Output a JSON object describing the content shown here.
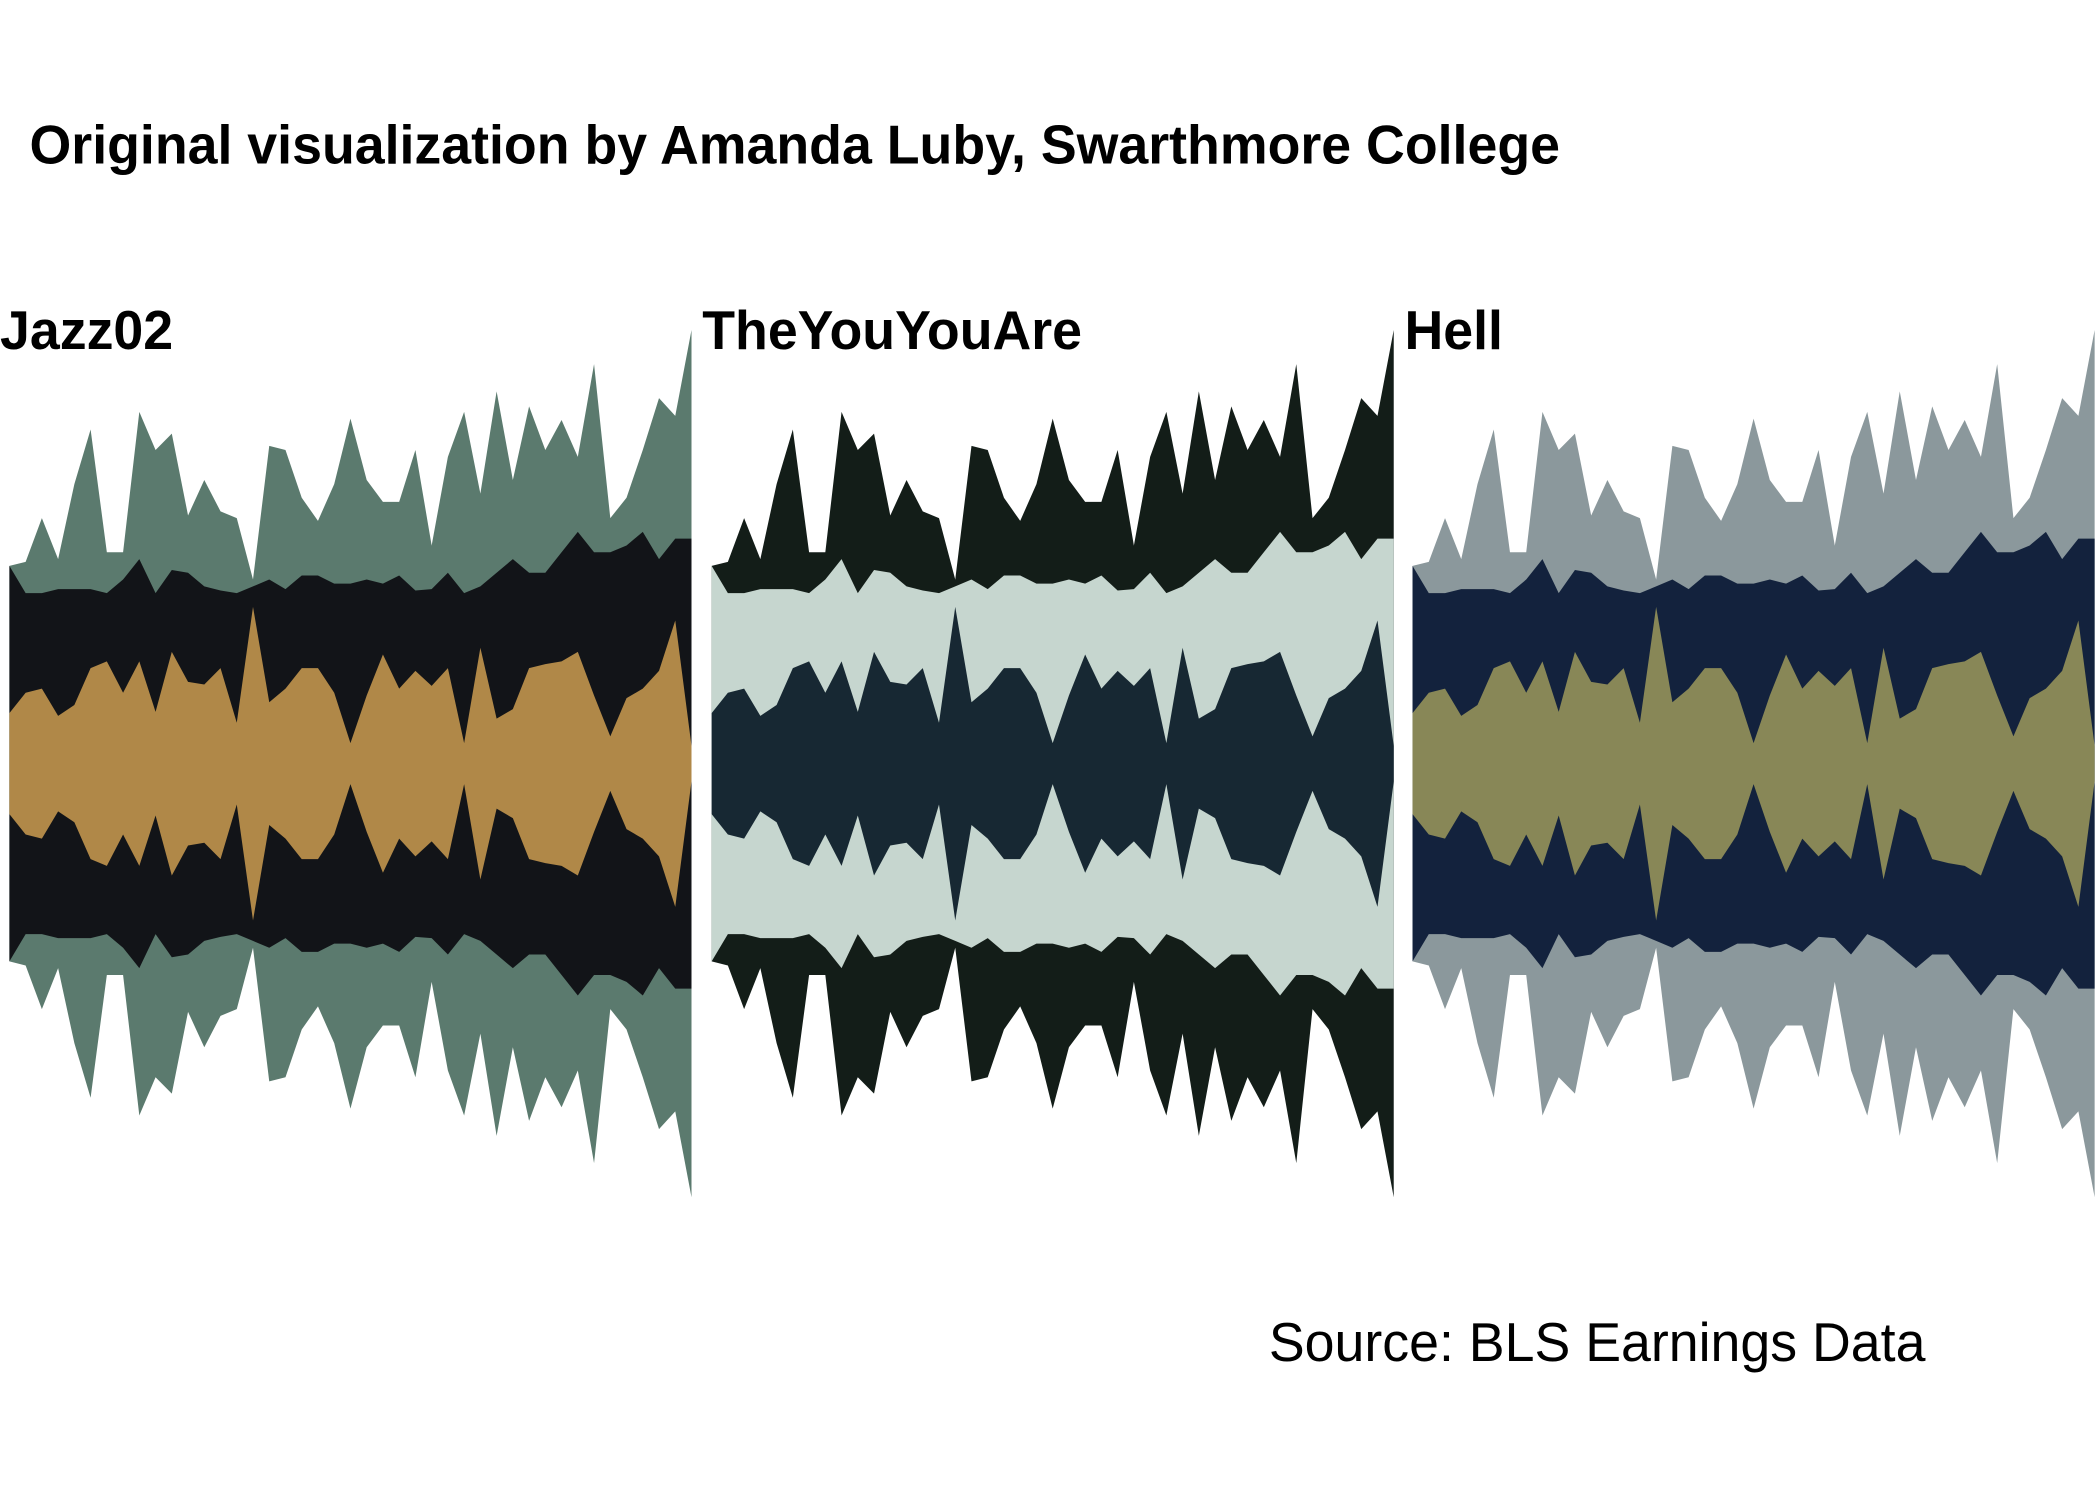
{
  "title": "Original visualization by Amanda Luby, Swarthmore College",
  "source": "Source: BLS Earnings Data",
  "chart_data": [
    {
      "type": "stream",
      "title": "Jazz02",
      "ylim": [
        -330,
        330
      ],
      "series": [
        {
          "color": "#b08848",
          "values": [
            37,
            52,
            55,
            35,
            43,
            70,
            75,
            52,
            75,
            38,
            82,
            60,
            58,
            70,
            30,
            115,
            45,
            55,
            70,
            70,
            52,
            15,
            50,
            80,
            55,
            68,
            57,
            70,
            15,
            85,
            33,
            40,
            70,
            73,
            75,
            82,
            50,
            20,
            48,
            55,
            68,
            105,
            13
          ]
        },
        {
          "color": "#121418",
          "values": [
            108,
            73,
            70,
            93,
            85,
            58,
            50,
            83,
            75,
            87,
            60,
            80,
            72,
            57,
            95,
            15,
            90,
            73,
            68,
            68,
            80,
            117,
            85,
            52,
            83,
            59,
            71,
            70,
            110,
            45,
            107,
            110,
            70,
            67,
            80,
            88,
            105,
            135,
            112,
            115,
            82,
            60,
            152
          ]
        },
        {
          "color": "#5b7a6e",
          "values": [
            0,
            23,
            55,
            22,
            77,
            117,
            30,
            20,
            108,
            105,
            100,
            42,
            78,
            58,
            55,
            5,
            98,
            102,
            57,
            40,
            73,
            121,
            73,
            60,
            54,
            103,
            32,
            85,
            133,
            68,
            133,
            58,
            122,
            90,
            97,
            55,
            138,
            25,
            35,
            60,
            118,
            90,
            153
          ]
        }
      ]
    },
    {
      "type": "stream",
      "title": "TheYouYouAre",
      "ylim": [
        -330,
        330
      ],
      "series": [
        {
          "color": "#172833",
          "values": [
            37,
            52,
            55,
            35,
            43,
            70,
            75,
            52,
            75,
            38,
            82,
            60,
            58,
            70,
            30,
            115,
            45,
            55,
            70,
            70,
            52,
            15,
            50,
            80,
            55,
            68,
            57,
            70,
            15,
            85,
            33,
            40,
            70,
            73,
            75,
            82,
            50,
            20,
            48,
            55,
            68,
            105,
            13
          ]
        },
        {
          "color": "#c6d6cf",
          "values": [
            108,
            73,
            70,
            93,
            85,
            58,
            50,
            83,
            75,
            87,
            60,
            80,
            72,
            57,
            95,
            15,
            90,
            73,
            68,
            68,
            80,
            117,
            85,
            52,
            83,
            59,
            71,
            70,
            110,
            45,
            107,
            110,
            70,
            67,
            80,
            88,
            105,
            135,
            112,
            115,
            82,
            60,
            152
          ]
        },
        {
          "color": "#131d18",
          "values": [
            0,
            23,
            55,
            22,
            77,
            117,
            30,
            20,
            108,
            105,
            100,
            42,
            78,
            58,
            55,
            5,
            98,
            102,
            57,
            40,
            73,
            121,
            73,
            60,
            54,
            103,
            32,
            85,
            133,
            68,
            133,
            58,
            122,
            90,
            97,
            55,
            138,
            25,
            35,
            60,
            118,
            90,
            153
          ]
        }
      ]
    },
    {
      "type": "stream",
      "title": "Hell",
      "ylim": [
        -330,
        330
      ],
      "series": [
        {
          "color": "#888757",
          "values": [
            37,
            52,
            55,
            35,
            43,
            70,
            75,
            52,
            75,
            38,
            82,
            60,
            58,
            70,
            30,
            115,
            45,
            55,
            70,
            70,
            52,
            15,
            50,
            80,
            55,
            68,
            57,
            70,
            15,
            85,
            33,
            40,
            70,
            73,
            75,
            82,
            50,
            20,
            48,
            55,
            68,
            105,
            13
          ]
        },
        {
          "color": "#13223d",
          "values": [
            108,
            73,
            70,
            93,
            85,
            58,
            50,
            83,
            75,
            87,
            60,
            80,
            72,
            57,
            95,
            15,
            90,
            73,
            68,
            68,
            80,
            117,
            85,
            52,
            83,
            59,
            71,
            70,
            110,
            45,
            107,
            110,
            70,
            67,
            80,
            88,
            105,
            135,
            112,
            115,
            82,
            60,
            152
          ]
        },
        {
          "color": "#8b989c",
          "values": [
            0,
            23,
            55,
            22,
            77,
            117,
            30,
            20,
            108,
            105,
            100,
            42,
            78,
            58,
            55,
            5,
            98,
            102,
            57,
            40,
            73,
            121,
            73,
            60,
            54,
            103,
            32,
            85,
            133,
            68,
            133,
            58,
            122,
            90,
            97,
            55,
            138,
            25,
            35,
            60,
            118,
            90,
            153
          ]
        }
      ]
    }
  ]
}
